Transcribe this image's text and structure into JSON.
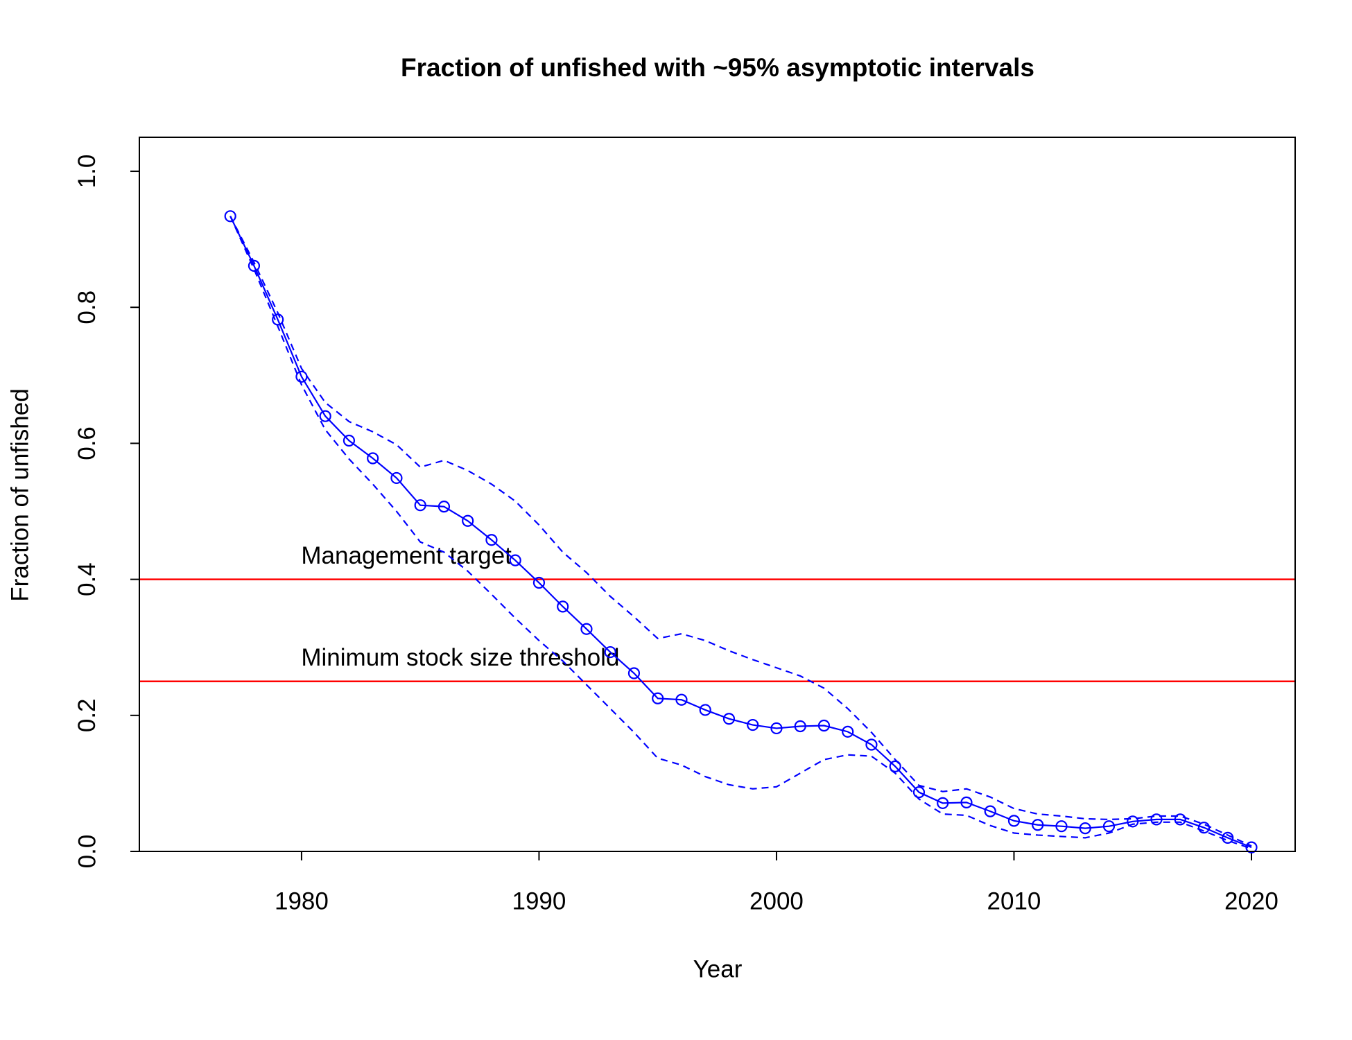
{
  "chart_data": {
    "type": "line",
    "title": "Fraction of unfished with ~95% asymptotic intervals",
    "x_label": "Year",
    "y_label": "Fraction of unfished",
    "color": "blue",
    "x": [
      1977,
      1978,
      1979,
      1980,
      1981,
      1982,
      1983,
      1984,
      1985,
      1986,
      1987,
      1988,
      1989,
      1990,
      1991,
      1992,
      1993,
      1994,
      1995,
      1996,
      1997,
      1998,
      1999,
      2000,
      2001,
      2002,
      2003,
      2004,
      2005,
      2006,
      2007,
      2008,
      2009,
      2010,
      2011,
      2012,
      2013,
      2014,
      2015,
      2016,
      2017,
      2018,
      2019,
      2020
    ],
    "values": [
      0.934,
      0.861,
      0.782,
      0.698,
      0.64,
      0.604,
      0.578,
      0.549,
      0.509,
      0.507,
      0.486,
      0.458,
      0.428,
      0.395,
      0.36,
      0.327,
      0.293,
      0.262,
      0.225,
      0.223,
      0.208,
      0.195,
      0.186,
      0.181,
      0.184,
      0.185,
      0.176,
      0.157,
      0.125,
      0.087,
      0.071,
      0.072,
      0.059,
      0.045,
      0.039,
      0.037,
      0.034,
      0.037,
      0.044,
      0.047,
      0.047,
      0.035,
      0.02,
      0.006
    ],
    "upper": [
      0.934,
      0.866,
      0.792,
      0.71,
      0.66,
      0.632,
      0.617,
      0.598,
      0.565,
      0.575,
      0.56,
      0.54,
      0.515,
      0.48,
      0.44,
      0.41,
      0.375,
      0.345,
      0.313,
      0.32,
      0.31,
      0.295,
      0.282,
      0.27,
      0.258,
      0.24,
      0.21,
      0.175,
      0.135,
      0.097,
      0.088,
      0.092,
      0.08,
      0.063,
      0.055,
      0.052,
      0.048,
      0.047,
      0.048,
      0.052,
      0.052,
      0.04,
      0.024,
      0.008
    ],
    "lower": [
      0.934,
      0.856,
      0.772,
      0.686,
      0.62,
      0.577,
      0.54,
      0.5,
      0.455,
      0.44,
      0.412,
      0.378,
      0.343,
      0.31,
      0.28,
      0.245,
      0.21,
      0.175,
      0.137,
      0.127,
      0.11,
      0.098,
      0.092,
      0.095,
      0.115,
      0.135,
      0.142,
      0.14,
      0.115,
      0.077,
      0.055,
      0.053,
      0.038,
      0.027,
      0.024,
      0.022,
      0.02,
      0.027,
      0.04,
      0.043,
      0.043,
      0.03,
      0.016,
      0.004
    ],
    "reference_lines": [
      {
        "value": 0.4,
        "label": "Management target",
        "color": "red"
      },
      {
        "value": 0.25,
        "label": "Minimum stock size threshold",
        "color": "red"
      }
    ],
    "xlim": [
      1973.17,
      2021.84
    ],
    "xticks": [
      1980,
      1990,
      2000,
      2010,
      2020
    ],
    "ylim": [
      0,
      1.05
    ],
    "yticks": [
      {
        "value": 0,
        "label": "0.0"
      },
      0.2,
      0.4,
      0.6,
      0.8,
      {
        "value": 1,
        "label": "1.0"
      }
    ]
  }
}
